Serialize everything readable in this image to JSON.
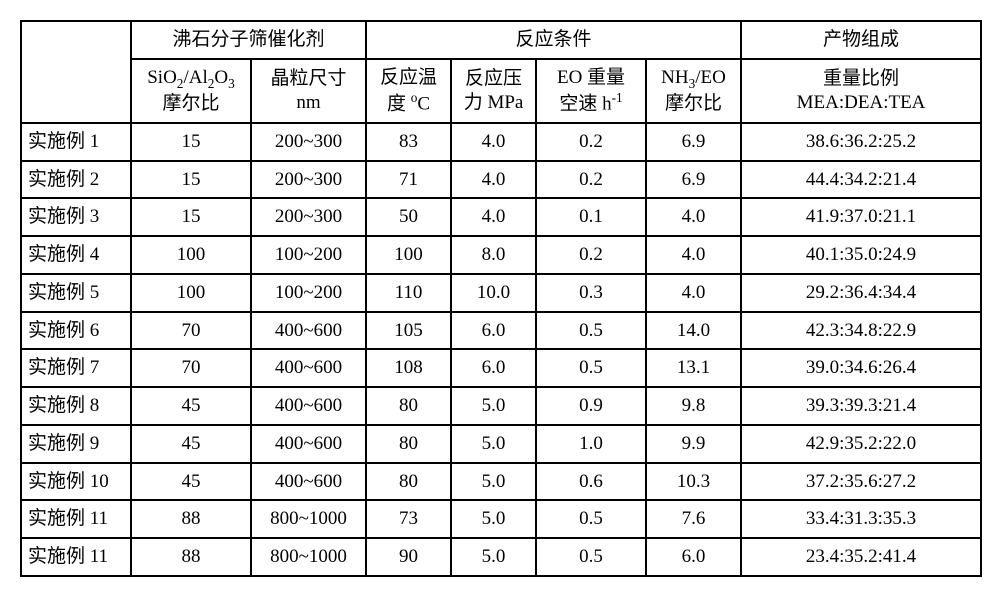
{
  "type": "table",
  "header_groups": {
    "group1": "沸石分子筛催化剂",
    "group2": "反应条件",
    "group3": "产物组成"
  },
  "sub_headers": {
    "col1_line1": "SiO",
    "col1_sub1": "2",
    "col1_mid": "/Al",
    "col1_sub2": "2",
    "col1_o": "O",
    "col1_sub3": "3",
    "col1_line2": "摩尔比",
    "col2_line1": "晶粒尺寸",
    "col2_line2": "nm",
    "col3_line1": "反应温",
    "col3_line2a": "度 ",
    "col3_sup": "o",
    "col3_line2b": "C",
    "col4_line1": "反应压",
    "col4_line2": "力 MPa",
    "col5_line1": "EO 重量",
    "col5_line2a": "空速 h",
    "col5_sup": "-1",
    "col6_line1a": "NH",
    "col6_sub": "3",
    "col6_line1b": "/EO",
    "col6_line2": "摩尔比",
    "col7_line1": "重量比例",
    "col7_line2": "MEA:DEA:TEA"
  },
  "rows": [
    {
      "label": "实施例 1",
      "c1": "15",
      "c2": "200~300",
      "c3": "83",
      "c4": "4.0",
      "c5": "0.2",
      "c6": "6.9",
      "c7": "38.6:36.2:25.2"
    },
    {
      "label": "实施例 2",
      "c1": "15",
      "c2": "200~300",
      "c3": "71",
      "c4": "4.0",
      "c5": "0.2",
      "c6": "6.9",
      "c7": "44.4:34.2:21.4"
    },
    {
      "label": "实施例 3",
      "c1": "15",
      "c2": "200~300",
      "c3": "50",
      "c4": "4.0",
      "c5": "0.1",
      "c6": "4.0",
      "c7": "41.9:37.0:21.1"
    },
    {
      "label": "实施例 4",
      "c1": "100",
      "c2": "100~200",
      "c3": "100",
      "c4": "8.0",
      "c5": "0.2",
      "c6": "4.0",
      "c7": "40.1:35.0:24.9"
    },
    {
      "label": "实施例 5",
      "c1": "100",
      "c2": "100~200",
      "c3": "110",
      "c4": "10.0",
      "c5": "0.3",
      "c6": "4.0",
      "c7": "29.2:36.4:34.4"
    },
    {
      "label": "实施例 6",
      "c1": "70",
      "c2": "400~600",
      "c3": "105",
      "c4": "6.0",
      "c5": "0.5",
      "c6": "14.0",
      "c7": "42.3:34.8:22.9"
    },
    {
      "label": "实施例 7",
      "c1": "70",
      "c2": "400~600",
      "c3": "108",
      "c4": "6.0",
      "c5": "0.5",
      "c6": "13.1",
      "c7": "39.0:34.6:26.4"
    },
    {
      "label": "实施例 8",
      "c1": "45",
      "c2": "400~600",
      "c3": "80",
      "c4": "5.0",
      "c5": "0.9",
      "c6": "9.8",
      "c7": "39.3:39.3:21.4"
    },
    {
      "label": "实施例 9",
      "c1": "45",
      "c2": "400~600",
      "c3": "80",
      "c4": "5.0",
      "c5": "1.0",
      "c6": "9.9",
      "c7": "42.9:35.2:22.0"
    },
    {
      "label": "实施例 10",
      "c1": "45",
      "c2": "400~600",
      "c3": "80",
      "c4": "5.0",
      "c5": "0.6",
      "c6": "10.3",
      "c7": "37.2:35.6:27.2"
    },
    {
      "label": "实施例 11",
      "c1": "88",
      "c2": "800~1000",
      "c3": "73",
      "c4": "5.0",
      "c5": "0.5",
      "c6": "7.6",
      "c7": "33.4:31.3:35.3"
    },
    {
      "label": "实施例 11",
      "c1": "88",
      "c2": "800~1000",
      "c3": "90",
      "c4": "5.0",
      "c5": "0.5",
      "c6": "6.0",
      "c7": "23.4:35.2:41.4"
    }
  ]
}
